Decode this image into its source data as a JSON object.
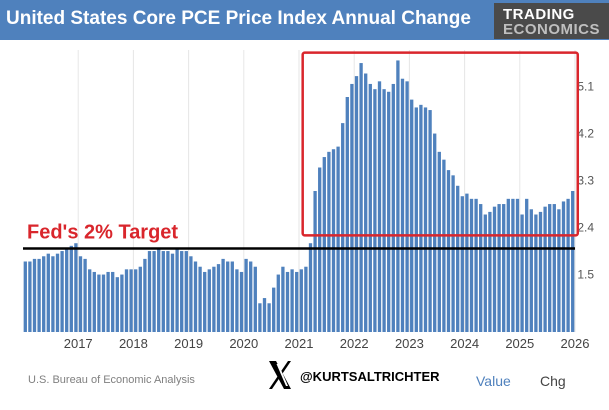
{
  "header": {
    "title": "United States Core PCE Price Index Annual Change",
    "brand_line1": "TRADING",
    "brand_line2": "ECONOMICS"
  },
  "footer": {
    "source": "U.S. Bureau of Economic Analysis",
    "handle": "@KURTSALTRICHTER",
    "tab_value": "Value",
    "tab_chg": "Chg"
  },
  "colors": {
    "bar": "#4f81bd",
    "header": "#4f81bd",
    "annotation": "#d9262c",
    "target_line": "#000000"
  },
  "chart_data": {
    "type": "bar",
    "title": "United States Core PCE Price Index Annual Change",
    "ylabel": "",
    "xlabel": "",
    "ylim": [
      0.4,
      5.8
    ],
    "yticks": [
      1.5,
      2.4,
      3.3,
      4.2,
      5.1
    ],
    "ytick_labels": [
      "1.5",
      "2.4",
      "3.3",
      "4.2",
      "5.1"
    ],
    "xtick_labels": [
      "2017",
      "2018",
      "2019",
      "2020",
      "2021",
      "2022",
      "2023",
      "2024",
      "2025",
      "2026"
    ],
    "start": "2016-01",
    "frequency": "monthly",
    "values": [
      1.75,
      1.75,
      1.8,
      1.8,
      1.85,
      1.9,
      1.85,
      1.9,
      1.95,
      2.0,
      2.05,
      2.1,
      1.85,
      1.8,
      1.6,
      1.55,
      1.5,
      1.5,
      1.55,
      1.55,
      1.45,
      1.5,
      1.6,
      1.6,
      1.6,
      1.65,
      1.8,
      1.95,
      1.95,
      2.0,
      1.95,
      1.95,
      1.9,
      2.0,
      1.95,
      1.95,
      1.85,
      1.75,
      1.65,
      1.55,
      1.6,
      1.65,
      1.7,
      1.8,
      1.75,
      1.75,
      1.6,
      1.55,
      1.8,
      1.75,
      1.65,
      0.95,
      1.05,
      0.95,
      1.25,
      1.5,
      1.65,
      1.55,
      1.6,
      1.55,
      1.6,
      1.65,
      2.1,
      3.1,
      3.55,
      3.75,
      3.85,
      3.9,
      3.95,
      4.4,
      4.9,
      5.15,
      5.3,
      5.55,
      5.35,
      5.15,
      5.05,
      5.2,
      5.05,
      5.0,
      5.15,
      5.6,
      5.25,
      5.2,
      4.85,
      4.7,
      4.75,
      4.7,
      4.65,
      4.2,
      3.85,
      3.7,
      3.5,
      3.4,
      3.2,
      3.0,
      3.05,
      2.95,
      2.95,
      2.85,
      2.65,
      2.7,
      2.8,
      2.85,
      2.85,
      2.95,
      2.95,
      2.95,
      2.65,
      2.95,
      2.75,
      2.65,
      2.7,
      2.8,
      2.85,
      2.85,
      2.75,
      2.9,
      2.95,
      3.1
    ],
    "annotations": [
      {
        "type": "hline",
        "y": 2.0,
        "text": "Fed's 2% Target"
      },
      {
        "type": "box",
        "x_range": [
          "2021-03",
          "2025-12"
        ],
        "y_range": [
          2.25,
          5.75
        ]
      }
    ]
  }
}
